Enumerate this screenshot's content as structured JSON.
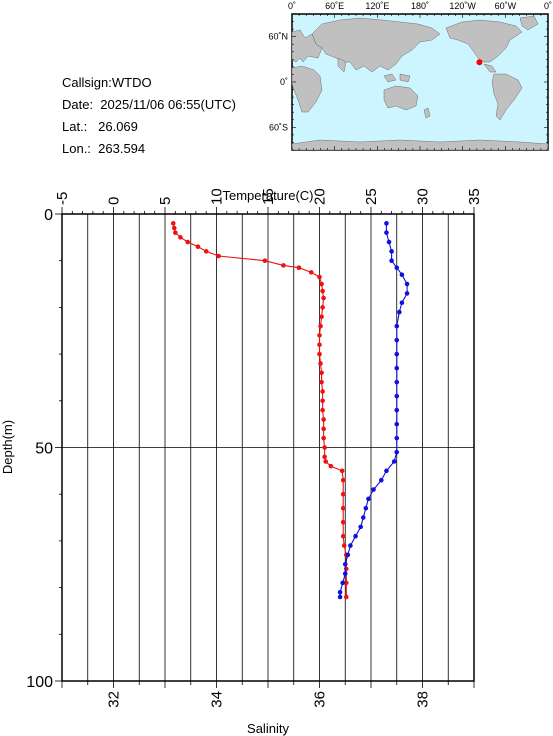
{
  "info": {
    "callsign": "Callsign:WTDO",
    "date": "Date:  2025/11/06 06:55(UTC)",
    "lat": "Lat.:   26.069",
    "lon": "Lon.:  263.594"
  },
  "map": {
    "top_labels": [
      "0˚",
      "60˚E",
      "120˚E",
      "180˚",
      "120˚W",
      "60˚W",
      "0˚"
    ],
    "left_labels": [
      "60˚N",
      "0˚",
      "60˚S"
    ],
    "ocean_color": "#ccf5ff",
    "land_color": "#c0c0c0",
    "marker_color": "#ff0000",
    "marker": {
      "lon": 263.594,
      "lat": 26.069
    }
  },
  "chart_data": {
    "type": "line",
    "x_top": {
      "label": "Temperature(C)",
      "range": [
        -5,
        35
      ],
      "ticks": [
        "-5",
        "0",
        "5",
        "10",
        "15",
        "20",
        "25",
        "30",
        "35"
      ]
    },
    "x_bottom": {
      "label": "Salinity",
      "range": [
        31,
        39
      ],
      "ticks": [
        "32",
        "34",
        "36",
        "38"
      ]
    },
    "y": {
      "label": "Depth(m)",
      "range": [
        0,
        100
      ],
      "inverted": true,
      "ticks": [
        "0",
        "50",
        "100"
      ]
    },
    "series": [
      {
        "color": "#ee1111",
        "axis": "temperature",
        "points": [
          [
            5.8,
            2
          ],
          [
            5.9,
            3
          ],
          [
            6.0,
            4
          ],
          [
            6.5,
            5
          ],
          [
            7.2,
            6
          ],
          [
            8.2,
            7
          ],
          [
            9.0,
            8
          ],
          [
            10.2,
            9
          ],
          [
            14.7,
            10
          ],
          [
            16.5,
            11
          ],
          [
            18.0,
            11.5
          ],
          [
            19.2,
            12.5
          ],
          [
            20.0,
            13.5
          ],
          [
            20.2,
            15
          ],
          [
            20.3,
            16.5
          ],
          [
            20.4,
            18
          ],
          [
            20.3,
            20
          ],
          [
            20.2,
            22
          ],
          [
            20.1,
            24
          ],
          [
            20.0,
            26
          ],
          [
            20.0,
            28
          ],
          [
            20.0,
            30
          ],
          [
            20.1,
            32
          ],
          [
            20.2,
            34
          ],
          [
            20.2,
            36
          ],
          [
            20.3,
            38
          ],
          [
            20.3,
            40
          ],
          [
            20.3,
            42
          ],
          [
            20.4,
            44
          ],
          [
            20.4,
            46
          ],
          [
            20.4,
            48
          ],
          [
            20.5,
            50
          ],
          [
            20.5,
            52
          ],
          [
            20.6,
            53
          ],
          [
            21.1,
            54
          ],
          [
            22.2,
            55
          ],
          [
            22.3,
            57
          ],
          [
            22.3,
            60
          ],
          [
            22.3,
            63
          ],
          [
            22.3,
            66
          ],
          [
            22.3,
            69
          ],
          [
            22.4,
            71
          ],
          [
            22.6,
            73
          ],
          [
            22.6,
            76
          ],
          [
            22.6,
            79
          ],
          [
            22.6,
            82
          ]
        ]
      },
      {
        "color": "#1111dd",
        "axis": "salinity",
        "points": [
          [
            37.3,
            2
          ],
          [
            37.3,
            4
          ],
          [
            37.35,
            6
          ],
          [
            37.4,
            8
          ],
          [
            37.4,
            10
          ],
          [
            37.5,
            11.5
          ],
          [
            37.6,
            13
          ],
          [
            37.7,
            15
          ],
          [
            37.7,
            17
          ],
          [
            37.6,
            19
          ],
          [
            37.55,
            21
          ],
          [
            37.5,
            24
          ],
          [
            37.5,
            27
          ],
          [
            37.5,
            30
          ],
          [
            37.5,
            33
          ],
          [
            37.5,
            36
          ],
          [
            37.5,
            39
          ],
          [
            37.5,
            42
          ],
          [
            37.5,
            45
          ],
          [
            37.5,
            48
          ],
          [
            37.5,
            51
          ],
          [
            37.45,
            53
          ],
          [
            37.3,
            55
          ],
          [
            37.2,
            57
          ],
          [
            37.05,
            59
          ],
          [
            36.95,
            61
          ],
          [
            36.9,
            63
          ],
          [
            36.85,
            65
          ],
          [
            36.8,
            67
          ],
          [
            36.7,
            69
          ],
          [
            36.6,
            71
          ],
          [
            36.55,
            73
          ],
          [
            36.5,
            75
          ],
          [
            36.5,
            77
          ],
          [
            36.45,
            79
          ],
          [
            36.4,
            81
          ],
          [
            36.4,
            82
          ]
        ]
      }
    ]
  }
}
